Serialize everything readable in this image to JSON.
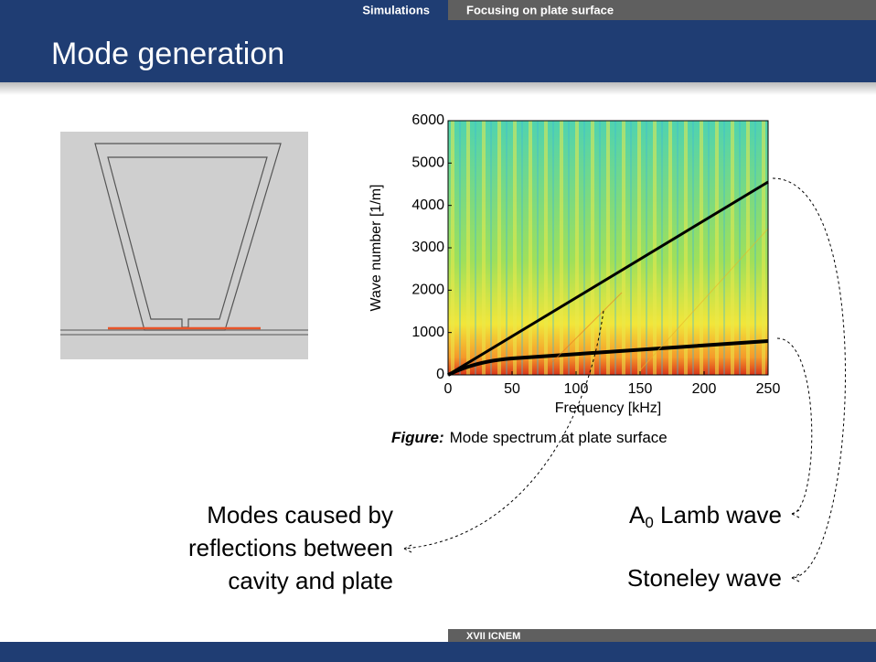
{
  "header": {
    "section": "Simulations",
    "subsection": "Focusing on plate surface",
    "title": "Mode generation"
  },
  "figure": {
    "y_axis_label": "Wave number [1/m]",
    "x_axis_label": "Frequency [kHz]",
    "yticks": [
      0,
      1000,
      2000,
      3000,
      4000,
      5000,
      6000
    ],
    "xticks": [
      0,
      50,
      100,
      150,
      200,
      250
    ],
    "caption_label": "Figure:",
    "caption_text": "Mode spectrum at plate surface"
  },
  "annotations": {
    "modes": [
      "Modes caused by",
      "reflections between",
      "cavity and plate"
    ],
    "lamb": {
      "main": "A",
      "sub": "0",
      "rest": " Lamb wave"
    },
    "stoneley": "Stoneley wave"
  },
  "footer": {
    "text": "XVII ICNEM"
  }
}
